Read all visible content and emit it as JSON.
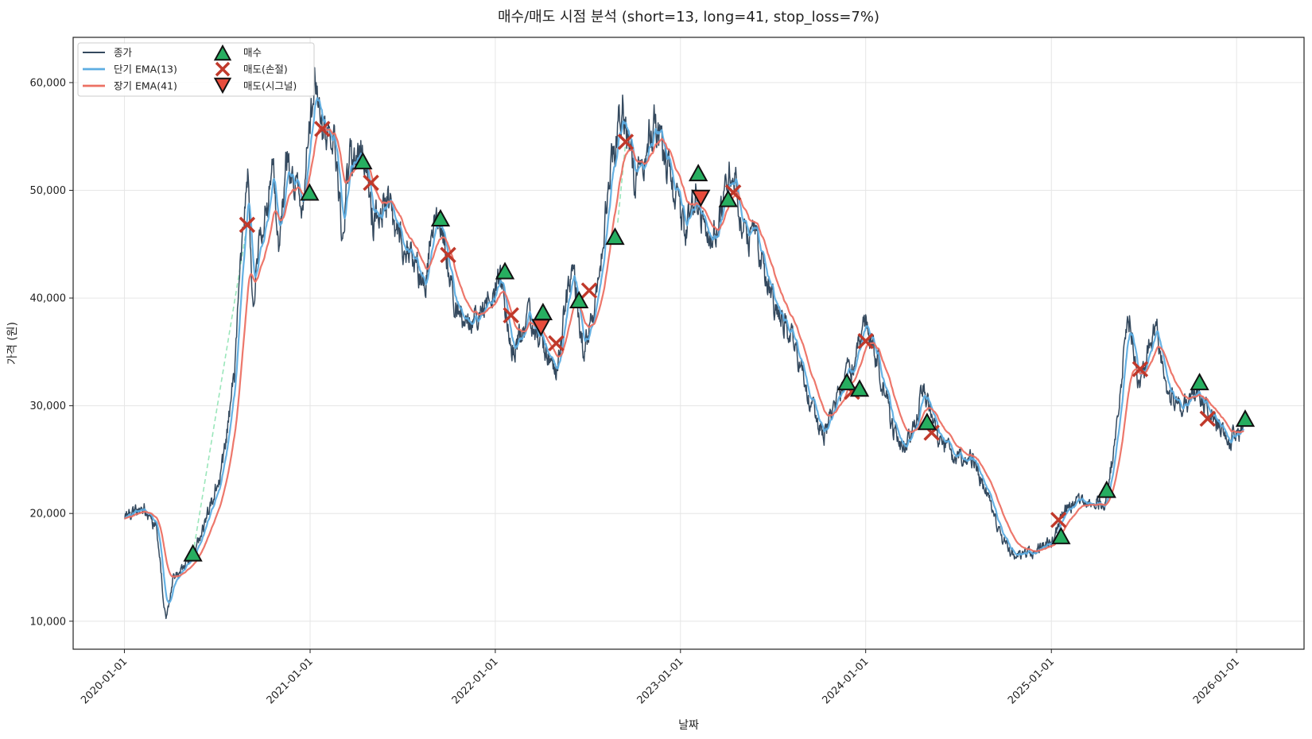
{
  "chart_data": {
    "type": "line",
    "title": "매수/매도 시점 분석 (short=13, long=41, stop_loss=7%)",
    "xlabel": "날짜",
    "ylabel": "가격 (원)",
    "ylim": [
      7400,
      64200
    ],
    "xlim": [
      "2019-09-22",
      "2026-05-14"
    ],
    "grid": true,
    "legend_position": "top-left",
    "x_ticks": [
      "2020-01-01",
      "2021-01-01",
      "2022-01-01",
      "2023-01-01",
      "2024-01-01",
      "2025-01-01",
      "2026-01-01"
    ],
    "y_ticks": [
      10000,
      20000,
      30000,
      40000,
      50000,
      60000
    ],
    "y_tick_labels": [
      "10,000",
      "20,000",
      "30,000",
      "40,000",
      "50,000",
      "60,000"
    ],
    "legend": [
      "종가",
      "단기 EMA(13)",
      "장기 EMA(41)",
      "매수",
      "매도(손절)",
      "매도(시그널)"
    ],
    "colors": {
      "close": "#34495e",
      "ema_short": "#5dade2",
      "ema_long": "#ec7063",
      "buy": "#27ae60",
      "stop_loss": "#c0392b",
      "signal_sell": "#e74c3c",
      "trade_line": "#82e0aa",
      "grid": "#e6e6e6"
    },
    "close_anchors": [
      [
        "2020-01-01",
        19500
      ],
      [
        "2020-02-10",
        20500
      ],
      [
        "2020-03-05",
        18500
      ],
      [
        "2020-03-23",
        9900
      ],
      [
        "2020-04-05",
        13800
      ],
      [
        "2020-05-15",
        16000
      ],
      [
        "2020-06-15",
        20000
      ],
      [
        "2020-07-15",
        25000
      ],
      [
        "2020-08-05",
        33000
      ],
      [
        "2020-08-20",
        45000
      ],
      [
        "2020-09-01",
        51000
      ],
      [
        "2020-09-10",
        40000
      ],
      [
        "2020-09-25",
        45000
      ],
      [
        "2020-10-20",
        52000
      ],
      [
        "2020-11-01",
        44000
      ],
      [
        "2020-11-15",
        53000
      ],
      [
        "2020-12-15",
        49000
      ],
      [
        "2021-01-10",
        59500
      ],
      [
        "2021-01-25",
        55000
      ],
      [
        "2021-02-15",
        56000
      ],
      [
        "2021-03-05",
        46000
      ],
      [
        "2021-03-20",
        52500
      ],
      [
        "2021-04-15",
        54000
      ],
      [
        "2021-05-05",
        47000
      ],
      [
        "2021-06-01",
        49000
      ],
      [
        "2021-07-01",
        45000
      ],
      [
        "2021-08-01",
        43000
      ],
      [
        "2021-08-15",
        41000
      ],
      [
        "2021-09-01",
        48000
      ],
      [
        "2021-09-20",
        47000
      ],
      [
        "2021-10-10",
        40000
      ],
      [
        "2021-11-01",
        38000
      ],
      [
        "2021-12-01",
        38000
      ],
      [
        "2022-01-10",
        42000
      ],
      [
        "2022-02-01",
        35000
      ],
      [
        "2022-03-10",
        38000
      ],
      [
        "2022-04-01",
        36000
      ],
      [
        "2022-05-01",
        33500
      ],
      [
        "2022-06-01",
        43000
      ],
      [
        "2022-06-25",
        35000
      ],
      [
        "2022-07-20",
        40000
      ],
      [
        "2022-08-15",
        52000
      ],
      [
        "2022-09-10",
        58000
      ],
      [
        "2022-10-01",
        51000
      ],
      [
        "2022-11-10",
        56000
      ],
      [
        "2022-12-15",
        51000
      ],
      [
        "2023-01-10",
        46000
      ],
      [
        "2023-01-31",
        49500
      ],
      [
        "2023-02-25",
        45000
      ],
      [
        "2023-03-20",
        48000
      ],
      [
        "2023-04-15",
        53000
      ],
      [
        "2023-05-01",
        47000
      ],
      [
        "2023-06-01",
        45000
      ],
      [
        "2023-07-01",
        40000
      ],
      [
        "2023-08-10",
        36000
      ],
      [
        "2023-09-10",
        31000
      ],
      [
        "2023-10-10",
        27000
      ],
      [
        "2023-11-15",
        31500
      ],
      [
        "2024-01-01",
        37500
      ],
      [
        "2024-01-25",
        34000
      ],
      [
        "2024-02-25",
        27500
      ],
      [
        "2024-03-20",
        26000
      ],
      [
        "2024-04-10",
        29000
      ],
      [
        "2024-04-25",
        31500
      ],
      [
        "2024-05-20",
        27000
      ],
      [
        "2024-06-25",
        25000
      ],
      [
        "2024-07-25",
        25500
      ],
      [
        "2024-08-25",
        22000
      ],
      [
        "2024-09-25",
        17500
      ],
      [
        "2024-10-25",
        16000
      ],
      [
        "2024-11-25",
        16500
      ],
      [
        "2025-01-05",
        17500
      ],
      [
        "2025-01-20",
        20000
      ],
      [
        "2025-02-25",
        21500
      ],
      [
        "2025-04-15",
        21000
      ],
      [
        "2025-05-01",
        25000
      ],
      [
        "2025-05-15",
        31000
      ],
      [
        "2025-06-05",
        38500
      ],
      [
        "2025-06-20",
        31000
      ],
      [
        "2025-07-10",
        35000
      ],
      [
        "2025-07-25",
        38000
      ],
      [
        "2025-08-15",
        31000
      ],
      [
        "2025-09-20",
        30000
      ],
      [
        "2025-10-20",
        31000
      ],
      [
        "2025-11-15",
        29000
      ],
      [
        "2025-12-15",
        27000
      ],
      [
        "2026-01-05",
        27000
      ],
      [
        "2026-01-15",
        28500
      ]
    ],
    "buy_points": [
      [
        "2020-05-15",
        16200
      ],
      [
        "2020-12-31",
        49700
      ],
      [
        "2021-04-15",
        52600
      ],
      [
        "2021-09-15",
        47300
      ],
      [
        "2022-01-20",
        42400
      ],
      [
        "2022-04-05",
        38600
      ],
      [
        "2022-06-15",
        39700
      ],
      [
        "2022-08-25",
        45600
      ],
      [
        "2023-02-05",
        51500
      ],
      [
        "2023-04-05",
        49100
      ],
      [
        "2023-11-25",
        32100
      ],
      [
        "2023-12-20",
        31500
      ],
      [
        "2024-05-01",
        28400
      ],
      [
        "2025-01-20",
        17800
      ],
      [
        "2025-04-20",
        22100
      ],
      [
        "2025-10-20",
        32100
      ],
      [
        "2026-01-18",
        28700
      ]
    ],
    "stop_loss_points": [
      [
        "2020-08-30",
        46800
      ],
      [
        "2021-01-25",
        55700
      ],
      [
        "2021-05-01",
        50700
      ],
      [
        "2021-09-30",
        44000
      ],
      [
        "2022-02-01",
        38400
      ],
      [
        "2022-05-01",
        35800
      ],
      [
        "2022-07-05",
        40700
      ],
      [
        "2022-09-15",
        54500
      ],
      [
        "2023-04-15",
        49800
      ],
      [
        "2023-12-05",
        31300
      ],
      [
        "2024-01-01",
        36000
      ],
      [
        "2024-05-10",
        27500
      ],
      [
        "2025-01-15",
        19400
      ],
      [
        "2025-06-25",
        33400
      ],
      [
        "2025-11-05",
        28800
      ]
    ],
    "signal_sell_points": [
      [
        "2022-04-01",
        37400
      ],
      [
        "2023-02-10",
        49400
      ]
    ]
  }
}
